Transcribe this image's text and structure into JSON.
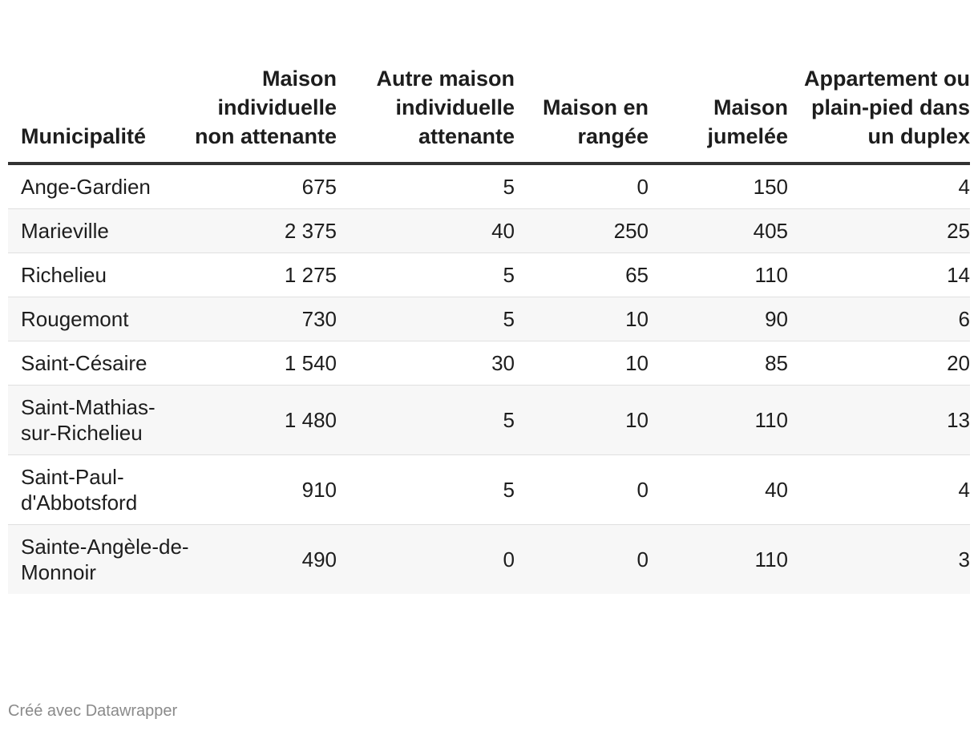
{
  "chart_data": {
    "type": "table",
    "columns": [
      "Municipalité",
      "Maison individuelle non attenante",
      "Autre maison individuelle attenante",
      "Maison en rangée",
      "Maison jumelée",
      "Appartement ou plain-pied dans un duplex"
    ],
    "rows": [
      {
        "name": "Ange-Gardien",
        "values": [
          "675",
          "5",
          "0",
          "150",
          "4"
        ]
      },
      {
        "name": "Marieville",
        "values": [
          "2 375",
          "40",
          "250",
          "405",
          "25"
        ]
      },
      {
        "name": "Richelieu",
        "values": [
          "1 275",
          "5",
          "65",
          "110",
          "14"
        ]
      },
      {
        "name": "Rougemont",
        "values": [
          "730",
          "5",
          "10",
          "90",
          "6"
        ]
      },
      {
        "name": "Saint-Césaire",
        "values": [
          "1 540",
          "30",
          "10",
          "85",
          "20"
        ]
      },
      {
        "name": "Saint-Mathias-sur-Richelieu",
        "values": [
          "1 480",
          "5",
          "10",
          "110",
          "13"
        ]
      },
      {
        "name": "Saint-Paul-d'Abbotsford",
        "values": [
          "910",
          "5",
          "0",
          "40",
          "4"
        ]
      },
      {
        "name": "Sainte-Angèle-de-Monnoir",
        "values": [
          "490",
          "0",
          "0",
          "110",
          "3"
        ]
      }
    ]
  },
  "footer": "Créé avec Datawrapper"
}
